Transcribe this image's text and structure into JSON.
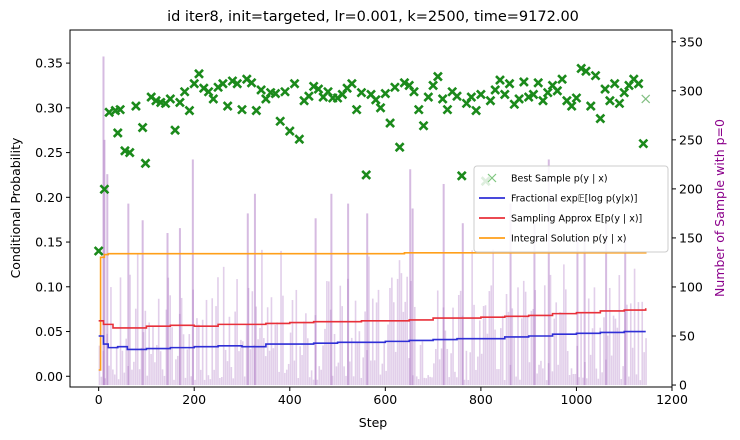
{
  "chart_data": {
    "type": "line",
    "title": "id iter8, init=targeted, lr=0.001, k=2500, time=9172.00",
    "xlabel": "Step",
    "ylabel": "Conditional Probability",
    "y2label": "Number of Sample with p=0",
    "xlim": [
      -60,
      1200
    ],
    "ylim": [
      -0.012,
      0.387
    ],
    "y2lim": [
      -2,
      362
    ],
    "xticks": [
      0,
      200,
      400,
      600,
      800,
      1000,
      1200
    ],
    "yticks": [
      0.0,
      0.05,
      0.1,
      0.15,
      0.2,
      0.25,
      0.3,
      0.35
    ],
    "ytick_labels": [
      "0.00",
      "0.05",
      "0.10",
      "0.15",
      "0.20",
      "0.25",
      "0.30",
      "0.35"
    ],
    "y2ticks": [
      0,
      50,
      100,
      150,
      200,
      250,
      300,
      350
    ],
    "legend_position": "center-right",
    "grid": false,
    "legend": [
      {
        "label": "Best Sample p(y | x)",
        "color": "#2ca02c",
        "kind": "marker"
      },
      {
        "label": "Fractional exp𝔼[log p(y|x)]",
        "color": "#2f2fd6",
        "kind": "line"
      },
      {
        "label": "Sampling Approx E[p(y | x)]",
        "color": "#e8303a",
        "kind": "line"
      },
      {
        "label": "Integral Solution p(y | x)",
        "color": "#ff9f1a",
        "kind": "line"
      }
    ],
    "colors": {
      "best_sample": "#1b8a1b",
      "fractional": "#2f2fd6",
      "sampling": "#e8303a",
      "integral": "#ff9f1a",
      "bars": "#a569bd",
      "y2label": "#8b008b"
    },
    "series": [
      {
        "name": "Integral Solution p(y | x)",
        "color": "#ff9f1a",
        "x": [
          0,
          4,
          8,
          12,
          20,
          30,
          640,
          660,
          800,
          1145
        ],
        "y": [
          0.007,
          0.133,
          0.133,
          0.136,
          0.137,
          0.137,
          0.138,
          0.138,
          0.138,
          0.139
        ]
      },
      {
        "name": "Sampling Approx E[p(y | x)]",
        "color": "#e8303a",
        "x": [
          0,
          10,
          30,
          60,
          100,
          150,
          200,
          250,
          300,
          350,
          400,
          450,
          500,
          550,
          600,
          650,
          700,
          750,
          800,
          850,
          900,
          950,
          1000,
          1050,
          1100,
          1145
        ],
        "y": [
          0.062,
          0.058,
          0.054,
          0.054,
          0.056,
          0.057,
          0.056,
          0.058,
          0.058,
          0.059,
          0.06,
          0.061,
          0.061,
          0.062,
          0.062,
          0.063,
          0.065,
          0.065,
          0.066,
          0.067,
          0.068,
          0.07,
          0.071,
          0.073,
          0.074,
          0.076
        ]
      },
      {
        "name": "Fractional exp𝔼[log p(y|x)]",
        "color": "#2f2fd6",
        "x": [
          0,
          10,
          20,
          40,
          60,
          100,
          150,
          200,
          250,
          300,
          350,
          400,
          450,
          500,
          550,
          600,
          650,
          700,
          750,
          800,
          850,
          900,
          950,
          1000,
          1050,
          1100,
          1145
        ],
        "y": [
          0.045,
          0.036,
          0.032,
          0.033,
          0.03,
          0.031,
          0.032,
          0.033,
          0.034,
          0.033,
          0.036,
          0.036,
          0.037,
          0.038,
          0.038,
          0.039,
          0.04,
          0.041,
          0.042,
          0.042,
          0.044,
          0.045,
          0.047,
          0.048,
          0.049,
          0.05,
          0.05
        ]
      }
    ],
    "best_sample": {
      "x": [
        0,
        12,
        22,
        35,
        40,
        45,
        55,
        65,
        78,
        92,
        98,
        110,
        120,
        130,
        140,
        150,
        160,
        170,
        180,
        190,
        200,
        210,
        220,
        230,
        240,
        250,
        260,
        270,
        280,
        290,
        300,
        310,
        320,
        330,
        340,
        350,
        360,
        370,
        380,
        390,
        400,
        410,
        420,
        430,
        440,
        450,
        460,
        470,
        480,
        490,
        500,
        510,
        520,
        530,
        540,
        550,
        560,
        570,
        580,
        590,
        600,
        610,
        620,
        630,
        640,
        650,
        660,
        670,
        680,
        690,
        700,
        710,
        720,
        730,
        740,
        750,
        760,
        770,
        780,
        790,
        800,
        810,
        820,
        830,
        840,
        850,
        860,
        870,
        880,
        890,
        900,
        910,
        920,
        930,
        940,
        950,
        960,
        970,
        980,
        990,
        1000,
        1010,
        1020,
        1030,
        1040,
        1050,
        1060,
        1070,
        1080,
        1090,
        1100,
        1110,
        1120,
        1130,
        1140,
        1145
      ],
      "y": [
        0.14,
        0.209,
        0.295,
        0.297,
        0.272,
        0.298,
        0.252,
        0.25,
        0.302,
        0.278,
        0.238,
        0.312,
        0.308,
        0.306,
        0.305,
        0.31,
        0.275,
        0.306,
        0.318,
        0.297,
        0.327,
        0.338,
        0.322,
        0.318,
        0.31,
        0.323,
        0.327,
        0.302,
        0.33,
        0.327,
        0.298,
        0.332,
        0.328,
        0.297,
        0.32,
        0.31,
        0.317,
        0.316,
        0.285,
        0.318,
        0.274,
        0.327,
        0.265,
        0.308,
        0.313,
        0.324,
        0.321,
        0.312,
        0.318,
        0.311,
        0.311,
        0.315,
        0.322,
        0.327,
        0.298,
        0.317,
        0.225,
        0.315,
        0.309,
        0.3,
        0.316,
        0.283,
        0.323,
        0.256,
        0.328,
        0.325,
        0.318,
        0.298,
        0.28,
        0.312,
        0.325,
        0.335,
        0.31,
        0.298,
        0.318,
        0.313,
        0.224,
        0.305,
        0.312,
        0.297,
        0.315,
        0.218,
        0.308,
        0.32,
        0.331,
        0.315,
        0.327,
        0.304,
        0.31,
        0.329,
        0.312,
        0.315,
        0.328,
        0.308,
        0.317,
        0.325,
        0.319,
        0.332,
        0.308,
        0.302,
        0.311,
        0.344,
        0.341,
        0.302,
        0.336,
        0.288,
        0.321,
        0.308,
        0.327,
        0.305,
        0.317,
        0.325,
        0.332,
        0.327,
        0.26,
        0.31
      ]
    },
    "zero_count_bars": {
      "series_name": "Number of Sample with p=0",
      "color": "#a569bd",
      "x_start": 0,
      "x_step": 4,
      "peaks": [
        {
          "x": 8,
          "value": 335
        },
        {
          "x": 10,
          "value": 250
        },
        {
          "x": 16,
          "value": 215
        },
        {
          "x": 60,
          "value": 185
        },
        {
          "x": 90,
          "value": 168
        },
        {
          "x": 142,
          "value": 155
        },
        {
          "x": 168,
          "value": 160
        },
        {
          "x": 195,
          "value": 230
        },
        {
          "x": 310,
          "value": 175
        },
        {
          "x": 325,
          "value": 195
        },
        {
          "x": 452,
          "value": 170
        },
        {
          "x": 485,
          "value": 195
        },
        {
          "x": 520,
          "value": 185
        },
        {
          "x": 560,
          "value": 175
        },
        {
          "x": 650,
          "value": 220
        },
        {
          "x": 655,
          "value": 180
        },
        {
          "x": 720,
          "value": 205
        },
        {
          "x": 760,
          "value": 165
        },
        {
          "x": 860,
          "value": 185
        },
        {
          "x": 860,
          "value": 185
        },
        {
          "x": 910,
          "value": 165
        },
        {
          "x": 940,
          "value": 230
        },
        {
          "x": 1000,
          "value": 155
        },
        {
          "x": 1015,
          "value": 150
        },
        {
          "x": 1060,
          "value": 165
        },
        {
          "x": 1100,
          "value": 150
        }
      ],
      "typical_range": [
        5,
        115
      ]
    }
  }
}
